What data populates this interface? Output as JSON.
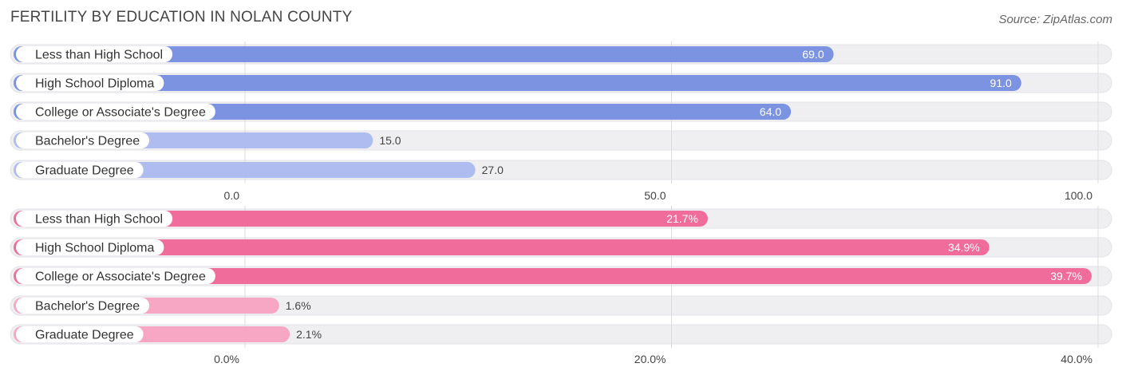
{
  "title": "FERTILITY BY EDUCATION IN NOLAN COUNTY",
  "source": "Source: ZipAtlas.com",
  "chart_data": [
    {
      "type": "bar",
      "orientation": "horizontal",
      "categories": [
        "Less than High School",
        "High School Diploma",
        "College or Associate's Degree",
        "Bachelor's Degree",
        "Graduate Degree"
      ],
      "values": [
        69.0,
        91.0,
        64.0,
        15.0,
        27.0
      ],
      "value_labels": [
        "69.0",
        "91.0",
        "64.0",
        "15.0",
        "27.0"
      ],
      "xlim": [
        0,
        100
      ],
      "ticks": [
        0,
        50,
        100
      ],
      "tick_labels": [
        "0.0",
        "50.0",
        "100.0"
      ],
      "grid": true,
      "colors": {
        "strong": "#7b93e0",
        "light": "#aebcf0",
        "track": "#efeff2"
      }
    },
    {
      "type": "bar",
      "orientation": "horizontal",
      "categories": [
        "Less than High School",
        "High School Diploma",
        "College or Associate's Degree",
        "Bachelor's Degree",
        "Graduate Degree"
      ],
      "values": [
        21.7,
        34.9,
        39.7,
        1.6,
        2.1
      ],
      "value_labels": [
        "21.7%",
        "34.9%",
        "39.7%",
        "1.6%",
        "2.1%"
      ],
      "xlim": [
        0,
        40
      ],
      "ticks": [
        0,
        20,
        40
      ],
      "tick_labels": [
        "0.0%",
        "20.0%",
        "40.0%"
      ],
      "grid": true,
      "colors": {
        "strong": "#f06d9b",
        "light": "#f7a6c3",
        "track": "#efeff2"
      }
    }
  ]
}
